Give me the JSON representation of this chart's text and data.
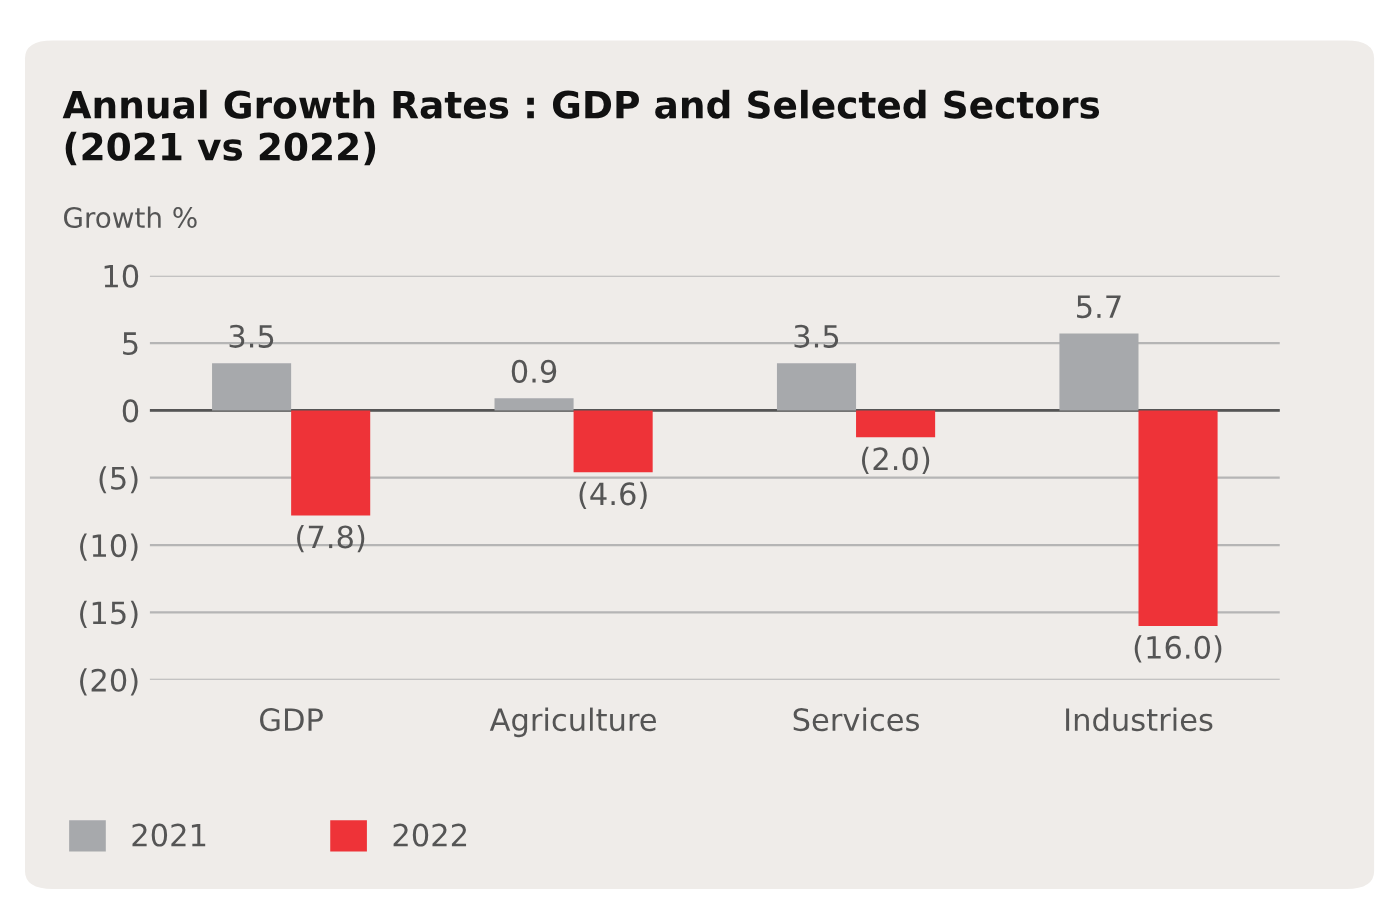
{
  "chart_data": {
    "type": "bar",
    "title": "Annual Growth Rates : GDP and Selected Sectors\n(2021 vs 2022)",
    "ylabel": "Growth %",
    "categories": [
      "GDP",
      "Agriculture",
      "Services",
      "Industries"
    ],
    "series": [
      {
        "name": "2021",
        "color": "#a7a9ac",
        "values": [
          3.5,
          0.9,
          3.5,
          5.7
        ],
        "value_labels": [
          "3.5",
          "0.9",
          "3.5",
          "5.7"
        ]
      },
      {
        "name": "2022",
        "color": "#ee3338",
        "values": [
          -7.8,
          -4.6,
          -2.0,
          -16.0
        ],
        "value_labels": [
          "(7.8)",
          "(4.6)",
          "(2.0)",
          "(16.0)"
        ]
      }
    ],
    "ylim": [
      -20,
      10
    ],
    "yticks": [
      10,
      5,
      0,
      {
        "value": -5,
        "label": "(5)"
      },
      {
        "value": -10,
        "label": "(10)"
      },
      {
        "value": -15,
        "label": "(15)"
      },
      {
        "value": -20,
        "label": "(20)"
      }
    ],
    "ref_lines": [
      {
        "axis": "y",
        "value": 0,
        "color": "#555555"
      }
    ],
    "grid": "y",
    "legend": "bottom left"
  }
}
